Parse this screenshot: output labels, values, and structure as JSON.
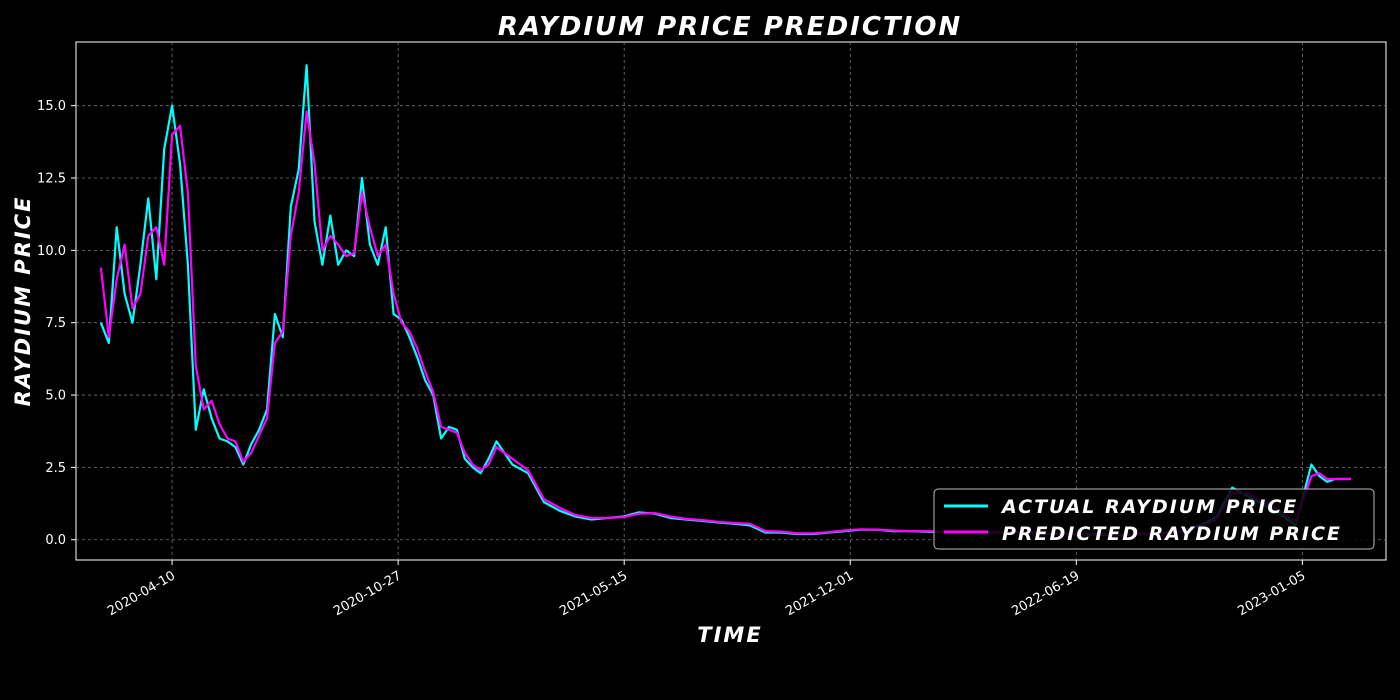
{
  "chart_data": {
    "type": "line",
    "title": "RAYDIUM PRICE PREDICTION",
    "xlabel": "TIME",
    "ylabel": "RAYDIUM PRICE",
    "x_ticks": [
      "2020-04-10",
      "2020-10-27",
      "2021-05-15",
      "2021-12-01",
      "2022-06-19",
      "2023-01-05"
    ],
    "y_ticks": [
      "0.0",
      "2.5",
      "5.0",
      "7.5",
      "10.0",
      "12.5",
      "15.0"
    ],
    "xlim": [
      "2020-01-16",
      "2023-03-20"
    ],
    "ylim": [
      -0.7,
      17.2
    ],
    "grid": true,
    "legend_position": "lower-right",
    "colors": {
      "background": "#000000",
      "actual": "#00ffff",
      "predicted": "#ff00ff",
      "grid": "#777777"
    },
    "x": [
      "2020-02-07",
      "2020-02-14",
      "2020-02-21",
      "2020-02-28",
      "2020-03-06",
      "2020-03-13",
      "2020-03-20",
      "2020-03-27",
      "2020-04-03",
      "2020-04-10",
      "2020-04-17",
      "2020-04-24",
      "2020-05-01",
      "2020-05-08",
      "2020-05-15",
      "2020-05-22",
      "2020-05-29",
      "2020-06-05",
      "2020-06-12",
      "2020-06-19",
      "2020-06-26",
      "2020-07-03",
      "2020-07-10",
      "2020-07-17",
      "2020-07-24",
      "2020-07-31",
      "2020-08-07",
      "2020-08-14",
      "2020-08-21",
      "2020-08-28",
      "2020-09-04",
      "2020-09-11",
      "2020-09-18",
      "2020-09-25",
      "2020-10-02",
      "2020-10-09",
      "2020-10-16",
      "2020-10-23",
      "2020-10-30",
      "2020-11-06",
      "2020-11-13",
      "2020-11-20",
      "2020-11-27",
      "2020-12-04",
      "2020-12-11",
      "2020-12-18",
      "2020-12-25",
      "2021-01-01",
      "2021-01-08",
      "2021-01-15",
      "2021-01-22",
      "2021-02-05",
      "2021-02-19",
      "2021-03-05",
      "2021-03-19",
      "2021-04-02",
      "2021-04-16",
      "2021-04-30",
      "2021-05-14",
      "2021-05-28",
      "2021-06-11",
      "2021-06-25",
      "2021-07-09",
      "2021-07-23",
      "2021-08-06",
      "2021-08-20",
      "2021-09-03",
      "2021-09-17",
      "2021-10-01",
      "2021-10-15",
      "2021-10-29",
      "2021-11-12",
      "2021-11-26",
      "2021-12-10",
      "2021-12-24",
      "2022-01-07",
      "2022-01-21",
      "2022-02-04",
      "2022-03-04",
      "2022-04-01",
      "2022-04-29",
      "2022-05-27",
      "2022-06-24",
      "2022-07-22",
      "2022-08-19",
      "2022-09-16",
      "2022-10-07",
      "2022-10-21",
      "2022-11-04",
      "2022-11-18",
      "2022-12-02",
      "2022-12-16",
      "2022-12-30",
      "2023-01-13",
      "2023-01-20",
      "2023-01-27",
      "2023-02-03",
      "2023-02-10",
      "2023-02-17"
    ],
    "series": [
      {
        "name": "ACTUAL RAYDIUM PRICE",
        "values": [
          7.5,
          6.8,
          10.8,
          8.5,
          7.5,
          9.5,
          11.8,
          9.0,
          13.5,
          15.0,
          13.0,
          9.5,
          3.8,
          5.2,
          4.2,
          3.5,
          3.4,
          3.2,
          2.6,
          3.3,
          3.8,
          4.5,
          7.8,
          7.0,
          11.5,
          12.8,
          16.4,
          11.0,
          9.5,
          11.2,
          9.5,
          10.0,
          9.8,
          12.5,
          10.2,
          9.5,
          10.8,
          7.8,
          7.6,
          7.0,
          6.3,
          5.5,
          5.0,
          3.5,
          3.9,
          3.8,
          2.8,
          2.5,
          2.3,
          2.8,
          3.4,
          2.6,
          2.3,
          1.3,
          1.0,
          0.8,
          0.7,
          0.75,
          0.8,
          0.95,
          0.9,
          0.75,
          0.7,
          0.65,
          0.6,
          0.55,
          0.5,
          0.25,
          0.25,
          0.2,
          0.2,
          0.25,
          0.3,
          0.35,
          0.35,
          0.3,
          0.3,
          0.28,
          0.25,
          0.25,
          0.25,
          0.2,
          0.2,
          0.15,
          0.2,
          0.25,
          0.5,
          0.8,
          1.8,
          1.5,
          1.2,
          0.9,
          0.5,
          2.6,
          2.2,
          2.0,
          2.1,
          2.1,
          2.1
        ]
      },
      {
        "name": "PREDICTED RAYDIUM PRICE",
        "values": [
          9.4,
          7.0,
          9.0,
          10.2,
          8.0,
          8.5,
          10.5,
          10.8,
          9.5,
          14.0,
          14.3,
          12.0,
          6.0,
          4.5,
          4.8,
          4.0,
          3.5,
          3.4,
          2.7,
          3.0,
          3.6,
          4.2,
          6.8,
          7.2,
          10.5,
          12.0,
          14.8,
          13.0,
          10.0,
          10.5,
          10.2,
          9.8,
          9.9,
          12.0,
          10.8,
          9.8,
          10.2,
          8.5,
          7.5,
          7.2,
          6.6,
          5.8,
          5.1,
          3.9,
          3.8,
          3.7,
          3.0,
          2.6,
          2.4,
          2.6,
          3.2,
          2.8,
          2.4,
          1.4,
          1.1,
          0.85,
          0.75,
          0.75,
          0.78,
          0.9,
          0.92,
          0.8,
          0.72,
          0.68,
          0.62,
          0.58,
          0.55,
          0.3,
          0.28,
          0.22,
          0.22,
          0.26,
          0.32,
          0.36,
          0.35,
          0.32,
          0.3,
          0.3,
          0.27,
          0.26,
          0.26,
          0.22,
          0.21,
          0.17,
          0.2,
          0.24,
          0.45,
          0.7,
          1.6,
          1.6,
          1.3,
          1.0,
          0.6,
          2.2,
          2.3,
          2.1,
          2.1,
          2.1,
          2.1
        ]
      }
    ]
  }
}
